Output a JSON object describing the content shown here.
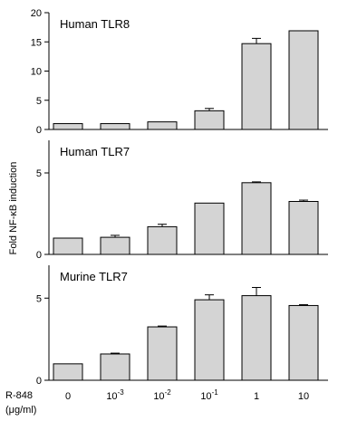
{
  "figure": {
    "ylabel": "Fold NF-κB induction",
    "xlabel_line1": "R-848",
    "xlabel_line2": "(μg/ml)"
  },
  "chart_data": [
    {
      "type": "bar",
      "title": "Human TLR8",
      "categories": [
        "0",
        "10^-3",
        "10^-2",
        "10^-1",
        "1",
        "10"
      ],
      "values": [
        1.0,
        1.0,
        1.3,
        3.2,
        14.7,
        16.9
      ],
      "errors": [
        0.0,
        0.0,
        0.0,
        0.4,
        0.9,
        0.0
      ],
      "ylim": [
        0,
        20
      ],
      "yticks": [
        0,
        5,
        10,
        15,
        20
      ]
    },
    {
      "type": "bar",
      "title": "Human TLR7",
      "categories": [
        "0",
        "10^-3",
        "10^-2",
        "10^-1",
        "1",
        "10"
      ],
      "values": [
        1.0,
        1.05,
        1.7,
        3.15,
        4.4,
        3.25
      ],
      "errors": [
        0.0,
        0.12,
        0.15,
        0.0,
        0.05,
        0.08
      ],
      "ylim": [
        0,
        7
      ],
      "yticks": [
        0,
        5
      ]
    },
    {
      "type": "bar",
      "title": "Murine TLR7",
      "categories": [
        "0",
        "10^-3",
        "10^-2",
        "10^-1",
        "1",
        "10"
      ],
      "values": [
        1.0,
        1.6,
        3.25,
        4.9,
        5.15,
        4.55
      ],
      "errors": [
        0.0,
        0.05,
        0.05,
        0.3,
        0.5,
        0.05
      ],
      "ylim": [
        0,
        7
      ],
      "yticks": [
        0,
        5
      ]
    }
  ],
  "colors": {
    "bar_fill": "#d4d4d4",
    "axis": "#000000"
  }
}
